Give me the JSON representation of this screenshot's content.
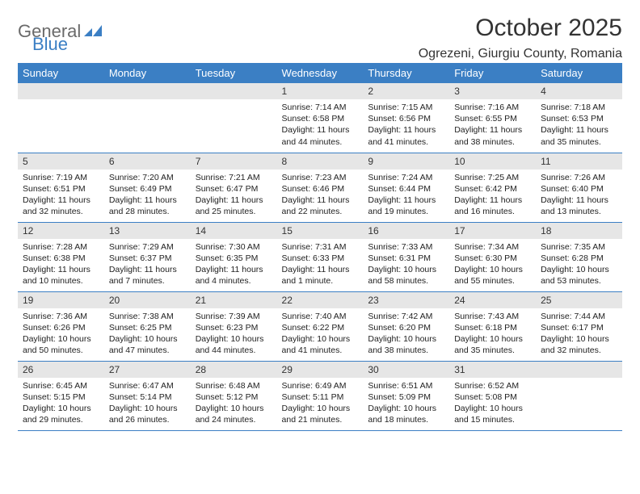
{
  "header": {
    "logo_general": "General",
    "logo_blue": "Blue",
    "month_title": "October 2025",
    "location": "Ogrezeni, Giurgiu County, Romania"
  },
  "colors": {
    "header_bg": "#3b7fc4",
    "header_fg": "#ffffff",
    "daynum_bg": "#e6e6e6",
    "rule": "#3b7fc4",
    "logo_gray": "#6a6a6a"
  },
  "weekdays": [
    "Sunday",
    "Monday",
    "Tuesday",
    "Wednesday",
    "Thursday",
    "Friday",
    "Saturday"
  ],
  "weeks": [
    [
      {
        "empty": true
      },
      {
        "empty": true
      },
      {
        "empty": true
      },
      {
        "n": "1",
        "sr": "7:14 AM",
        "ss": "6:58 PM",
        "dl": "11 hours and 44 minutes."
      },
      {
        "n": "2",
        "sr": "7:15 AM",
        "ss": "6:56 PM",
        "dl": "11 hours and 41 minutes."
      },
      {
        "n": "3",
        "sr": "7:16 AM",
        "ss": "6:55 PM",
        "dl": "11 hours and 38 minutes."
      },
      {
        "n": "4",
        "sr": "7:18 AM",
        "ss": "6:53 PM",
        "dl": "11 hours and 35 minutes."
      }
    ],
    [
      {
        "n": "5",
        "sr": "7:19 AM",
        "ss": "6:51 PM",
        "dl": "11 hours and 32 minutes."
      },
      {
        "n": "6",
        "sr": "7:20 AM",
        "ss": "6:49 PM",
        "dl": "11 hours and 28 minutes."
      },
      {
        "n": "7",
        "sr": "7:21 AM",
        "ss": "6:47 PM",
        "dl": "11 hours and 25 minutes."
      },
      {
        "n": "8",
        "sr": "7:23 AM",
        "ss": "6:46 PM",
        "dl": "11 hours and 22 minutes."
      },
      {
        "n": "9",
        "sr": "7:24 AM",
        "ss": "6:44 PM",
        "dl": "11 hours and 19 minutes."
      },
      {
        "n": "10",
        "sr": "7:25 AM",
        "ss": "6:42 PM",
        "dl": "11 hours and 16 minutes."
      },
      {
        "n": "11",
        "sr": "7:26 AM",
        "ss": "6:40 PM",
        "dl": "11 hours and 13 minutes."
      }
    ],
    [
      {
        "n": "12",
        "sr": "7:28 AM",
        "ss": "6:38 PM",
        "dl": "11 hours and 10 minutes."
      },
      {
        "n": "13",
        "sr": "7:29 AM",
        "ss": "6:37 PM",
        "dl": "11 hours and 7 minutes."
      },
      {
        "n": "14",
        "sr": "7:30 AM",
        "ss": "6:35 PM",
        "dl": "11 hours and 4 minutes."
      },
      {
        "n": "15",
        "sr": "7:31 AM",
        "ss": "6:33 PM",
        "dl": "11 hours and 1 minute."
      },
      {
        "n": "16",
        "sr": "7:33 AM",
        "ss": "6:31 PM",
        "dl": "10 hours and 58 minutes."
      },
      {
        "n": "17",
        "sr": "7:34 AM",
        "ss": "6:30 PM",
        "dl": "10 hours and 55 minutes."
      },
      {
        "n": "18",
        "sr": "7:35 AM",
        "ss": "6:28 PM",
        "dl": "10 hours and 53 minutes."
      }
    ],
    [
      {
        "n": "19",
        "sr": "7:36 AM",
        "ss": "6:26 PM",
        "dl": "10 hours and 50 minutes."
      },
      {
        "n": "20",
        "sr": "7:38 AM",
        "ss": "6:25 PM",
        "dl": "10 hours and 47 minutes."
      },
      {
        "n": "21",
        "sr": "7:39 AM",
        "ss": "6:23 PM",
        "dl": "10 hours and 44 minutes."
      },
      {
        "n": "22",
        "sr": "7:40 AM",
        "ss": "6:22 PM",
        "dl": "10 hours and 41 minutes."
      },
      {
        "n": "23",
        "sr": "7:42 AM",
        "ss": "6:20 PM",
        "dl": "10 hours and 38 minutes."
      },
      {
        "n": "24",
        "sr": "7:43 AM",
        "ss": "6:18 PM",
        "dl": "10 hours and 35 minutes."
      },
      {
        "n": "25",
        "sr": "7:44 AM",
        "ss": "6:17 PM",
        "dl": "10 hours and 32 minutes."
      }
    ],
    [
      {
        "n": "26",
        "sr": "6:45 AM",
        "ss": "5:15 PM",
        "dl": "10 hours and 29 minutes."
      },
      {
        "n": "27",
        "sr": "6:47 AM",
        "ss": "5:14 PM",
        "dl": "10 hours and 26 minutes."
      },
      {
        "n": "28",
        "sr": "6:48 AM",
        "ss": "5:12 PM",
        "dl": "10 hours and 24 minutes."
      },
      {
        "n": "29",
        "sr": "6:49 AM",
        "ss": "5:11 PM",
        "dl": "10 hours and 21 minutes."
      },
      {
        "n": "30",
        "sr": "6:51 AM",
        "ss": "5:09 PM",
        "dl": "10 hours and 18 minutes."
      },
      {
        "n": "31",
        "sr": "6:52 AM",
        "ss": "5:08 PM",
        "dl": "10 hours and 15 minutes."
      },
      {
        "empty": true
      }
    ]
  ],
  "labels": {
    "sunrise": "Sunrise:",
    "sunset": "Sunset:",
    "daylight": "Daylight:"
  }
}
